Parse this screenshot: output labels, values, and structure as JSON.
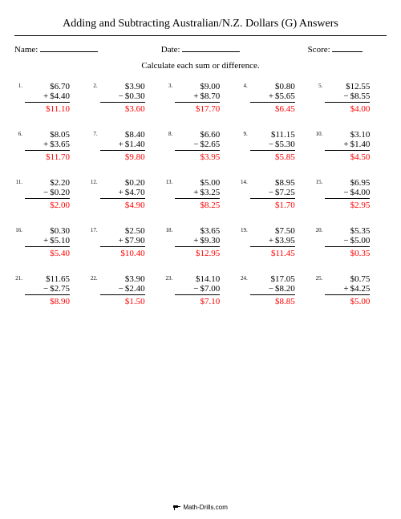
{
  "title": "Adding and Subtracting Australian/N.Z. Dollars (G) Answers",
  "meta": {
    "name_label": "Name:",
    "date_label": "Date:",
    "score_label": "Score:"
  },
  "instruction": "Calculate each sum or difference.",
  "answer_color": "#ff0000",
  "text_color": "#000000",
  "background_color": "#ffffff",
  "font_family": "Times New Roman",
  "problems": [
    {
      "n": "1.",
      "a": "$6.70",
      "op": "+",
      "b": "$4.40",
      "ans": "$11.10"
    },
    {
      "n": "2.",
      "a": "$3.90",
      "op": "−",
      "b": "$0.30",
      "ans": "$3.60"
    },
    {
      "n": "3.",
      "a": "$9.00",
      "op": "+",
      "b": "$8.70",
      "ans": "$17.70"
    },
    {
      "n": "4.",
      "a": "$0.80",
      "op": "+",
      "b": "$5.65",
      "ans": "$6.45"
    },
    {
      "n": "5.",
      "a": "$12.55",
      "op": "−",
      "b": "$8.55",
      "ans": "$4.00"
    },
    {
      "n": "6.",
      "a": "$8.05",
      "op": "+",
      "b": "$3.65",
      "ans": "$11.70"
    },
    {
      "n": "7.",
      "a": "$8.40",
      "op": "+",
      "b": "$1.40",
      "ans": "$9.80"
    },
    {
      "n": "8.",
      "a": "$6.60",
      "op": "−",
      "b": "$2.65",
      "ans": "$3.95"
    },
    {
      "n": "9.",
      "a": "$11.15",
      "op": "−",
      "b": "$5.30",
      "ans": "$5.85"
    },
    {
      "n": "10.",
      "a": "$3.10",
      "op": "+",
      "b": "$1.40",
      "ans": "$4.50"
    },
    {
      "n": "11.",
      "a": "$2.20",
      "op": "−",
      "b": "$0.20",
      "ans": "$2.00"
    },
    {
      "n": "12.",
      "a": "$0.20",
      "op": "+",
      "b": "$4.70",
      "ans": "$4.90"
    },
    {
      "n": "13.",
      "a": "$5.00",
      "op": "+",
      "b": "$3.25",
      "ans": "$8.25"
    },
    {
      "n": "14.",
      "a": "$8.95",
      "op": "−",
      "b": "$7.25",
      "ans": "$1.70"
    },
    {
      "n": "15.",
      "a": "$6.95",
      "op": "−",
      "b": "$4.00",
      "ans": "$2.95"
    },
    {
      "n": "16.",
      "a": "$0.30",
      "op": "+",
      "b": "$5.10",
      "ans": "$5.40"
    },
    {
      "n": "17.",
      "a": "$2.50",
      "op": "+",
      "b": "$7.90",
      "ans": "$10.40"
    },
    {
      "n": "18.",
      "a": "$3.65",
      "op": "+",
      "b": "$9.30",
      "ans": "$12.95"
    },
    {
      "n": "19.",
      "a": "$7.50",
      "op": "+",
      "b": "$3.95",
      "ans": "$11.45"
    },
    {
      "n": "20.",
      "a": "$5.35",
      "op": "−",
      "b": "$5.00",
      "ans": "$0.35"
    },
    {
      "n": "21.",
      "a": "$11.65",
      "op": "−",
      "b": "$2.75",
      "ans": "$8.90"
    },
    {
      "n": "22.",
      "a": "$3.90",
      "op": "−",
      "b": "$2.40",
      "ans": "$1.50"
    },
    {
      "n": "23.",
      "a": "$14.10",
      "op": "−",
      "b": "$7.00",
      "ans": "$7.10"
    },
    {
      "n": "24.",
      "a": "$17.05",
      "op": "−",
      "b": "$8.20",
      "ans": "$8.85"
    },
    {
      "n": "25.",
      "a": "$0.75",
      "op": "+",
      "b": "$4.25",
      "ans": "$5.00"
    }
  ],
  "footer": "Math-Drills.com"
}
